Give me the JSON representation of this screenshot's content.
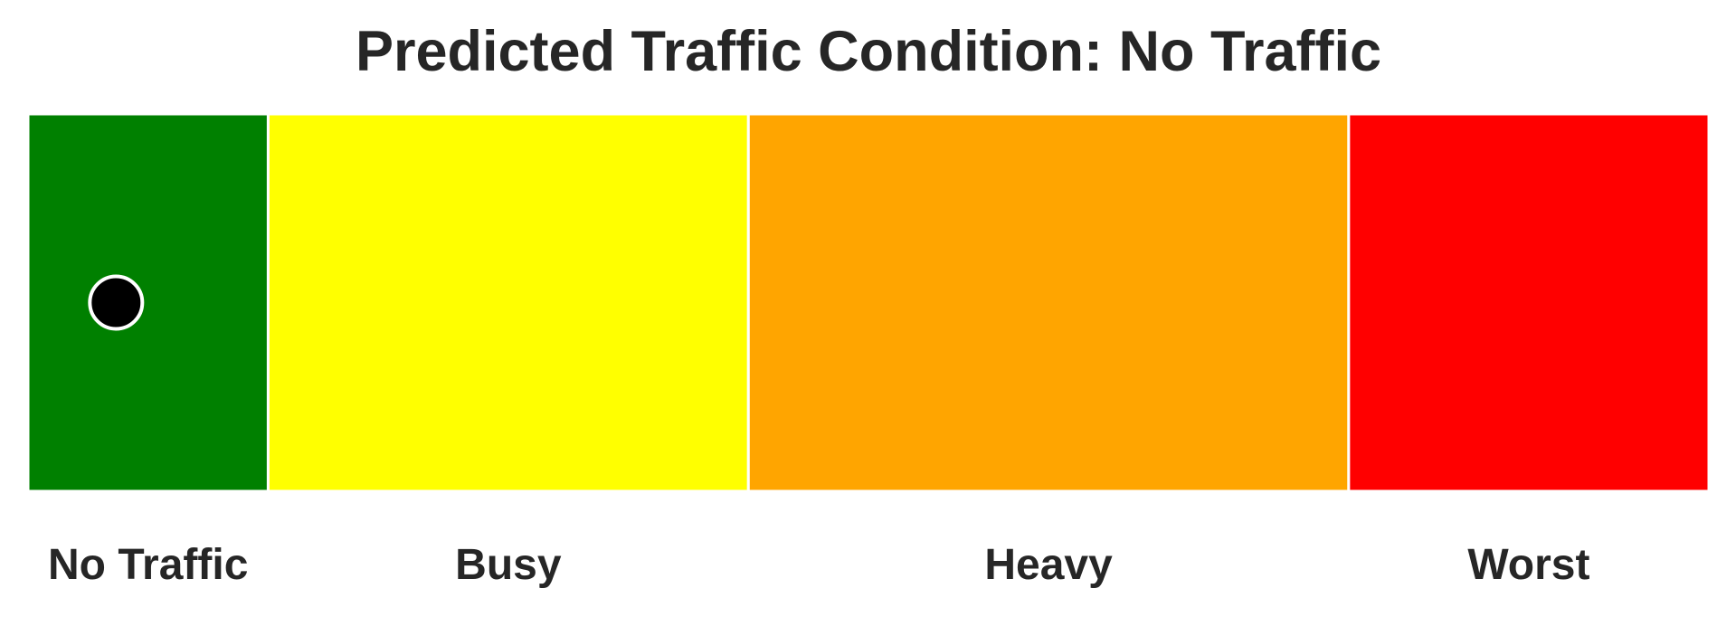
{
  "chart_data": {
    "type": "bar",
    "title": "Predicted Traffic Condition: No Traffic",
    "xlabel": "",
    "ylabel": "",
    "categories": [
      "No Traffic",
      "Busy",
      "Heavy",
      "Worst"
    ],
    "segments": [
      {
        "label": "No Traffic",
        "start": 0,
        "end": 1.5,
        "color": "#008000"
      },
      {
        "label": "Busy",
        "start": 1.5,
        "end": 4.5,
        "color": "#FFFF00"
      },
      {
        "label": "Heavy",
        "start": 4.5,
        "end": 8.25,
        "color": "#FFA500"
      },
      {
        "label": "Worst",
        "start": 8.25,
        "end": 10.5,
        "color": "#FF0000"
      }
    ],
    "xlim": [
      0,
      10.5
    ],
    "ylim": [
      0,
      1
    ],
    "marker": {
      "x": 0.55,
      "y": 0.5,
      "color": "#000000",
      "edge_color": "#ffffff"
    },
    "grid": false,
    "legend": "none"
  }
}
